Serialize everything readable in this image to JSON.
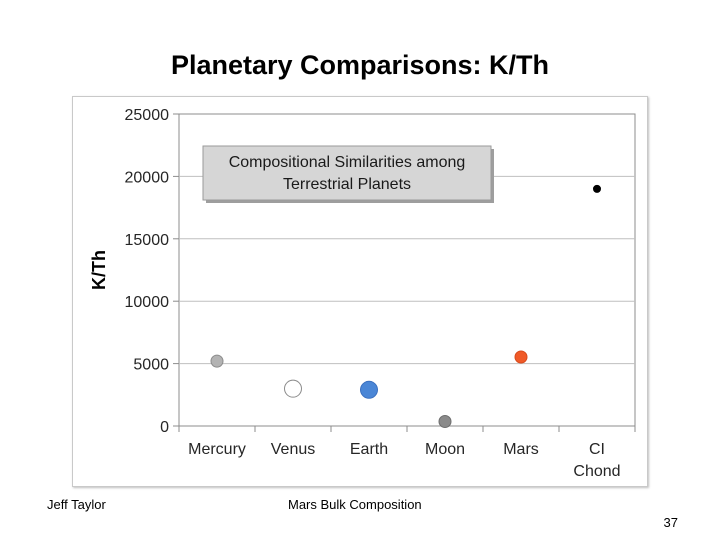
{
  "slide": {
    "title": "Planetary Comparisons: K/Th",
    "footer_left": "Jeff Taylor",
    "footer_center": "Mars Bulk Composition",
    "page_number": "37"
  },
  "chart_data": {
    "type": "scatter",
    "title": "",
    "xlabel": "",
    "ylabel": "K/Th",
    "categories": [
      "Mercury",
      "Venus",
      "Earth",
      "Moon",
      "Mars",
      "CI\nChond"
    ],
    "y_ticks": [
      "0",
      "5000",
      "10000",
      "15000",
      "20000",
      "25000"
    ],
    "ylim": [
      0,
      25000
    ],
    "grid": true,
    "annotation": [
      "Compositional  Similarities  among",
      "Terrestrial  Planets"
    ],
    "points": [
      {
        "category": "Mercury",
        "y": 5200,
        "fill": "#b3b3b3",
        "stroke": "#8c8c8c",
        "size": "medium"
      },
      {
        "category": "Venus",
        "y": 2990,
        "fill": "#ffffff",
        "stroke": "#8c8c8c",
        "size": "large"
      },
      {
        "category": "Earth",
        "y": 2900,
        "fill": "#4a86d6",
        "stroke": "#3a6fbf",
        "size": "large"
      },
      {
        "category": "Moon",
        "y": 360,
        "fill": "#8a8a8a",
        "stroke": "#6e6e6e",
        "size": "medium"
      },
      {
        "category": "Mars",
        "y": 5530,
        "fill": "#f05a28",
        "stroke": "#d84a1c",
        "size": "medium"
      },
      {
        "category": "CI\nChond",
        "y": 19000,
        "fill": "#000000",
        "stroke": "#000000",
        "size": "small"
      }
    ],
    "colors": {
      "grid": "#bfbfbf",
      "axis": "#8c8c8c",
      "annotation_fill": "#d6d6d6",
      "annotation_stroke": "#9a9a9a"
    }
  }
}
